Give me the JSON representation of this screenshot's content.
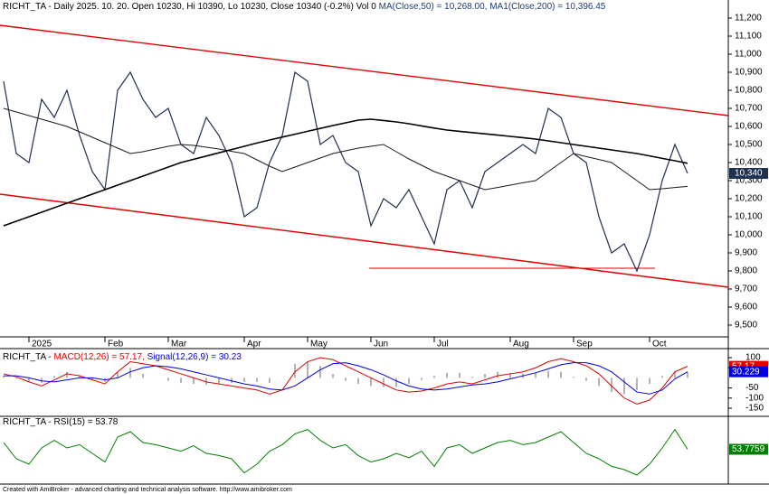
{
  "chart_data": [
    {
      "type": "line",
      "title": [
        "RICHT_TA - Daily 2025. 10. 20. Open 10230, Hi 10390, Lo 10230, Close 10340 (-0.2%) Vol 0",
        "MA(Close,50) = 10,268.00,",
        "MA1(Close,200) = 10,396.45"
      ],
      "title_colors": [
        "#000000",
        "#1c3c78",
        "#1c3c78"
      ],
      "categories": [
        null,
        null,
        "2025",
        null,
        null,
        null,
        null,
        null,
        "Feb",
        null,
        null,
        null,
        null,
        "Mar",
        null,
        null,
        null,
        null,
        null,
        "Apr",
        null,
        null,
        null,
        null,
        "May",
        null,
        null,
        null,
        null,
        "Jun",
        null,
        null,
        null,
        null,
        "Jul",
        null,
        null,
        null,
        null,
        null,
        "Aug",
        null,
        null,
        null,
        null,
        "Sep",
        null,
        null,
        null,
        null,
        null,
        "Oct",
        null,
        null,
        null
      ],
      "series": [
        {
          "color": "#1f3050",
          "width": 1.2,
          "values": [
            10850,
            10450,
            10400,
            10750,
            10650,
            10800,
            10550,
            10350,
            10250,
            10800,
            10900,
            10750,
            10650,
            10700,
            10500,
            10450,
            10650,
            10550,
            10400,
            10100,
            10150,
            10400,
            10550,
            10900,
            10850,
            10500,
            10550,
            10400,
            10350,
            10050,
            10200,
            10150,
            10250,
            10100,
            9950,
            10250,
            10300,
            10150,
            10350,
            10400,
            10450,
            10500,
            10450,
            10700,
            10650,
            10450,
            10400,
            10100,
            9900,
            9950,
            9800,
            10000,
            10300,
            10500,
            10340
          ]
        },
        {
          "color": "#1a1a1a",
          "width": 1,
          "values": [
            10700,
            10680,
            10660,
            10640,
            10620,
            10600,
            10570,
            10540,
            10510,
            10480,
            10450,
            10460,
            10475,
            10490,
            10500,
            10495,
            10485,
            10475,
            10462,
            10450,
            10415,
            10380,
            10350,
            10375,
            10400,
            10425,
            10450,
            10465,
            10480,
            10490,
            10500,
            10460,
            10420,
            10385,
            10350,
            10325,
            10300,
            10275,
            10250,
            10262,
            10275,
            10288,
            10300,
            10350,
            10400,
            10450,
            10433,
            10417,
            10400,
            10350,
            10300,
            10250,
            10255,
            10262,
            10268
          ]
        },
        {
          "color": "#000000",
          "width": 1.6,
          "values": [
            10050,
            10075,
            10100,
            10125,
            10150,
            10175,
            10200,
            10225,
            10250,
            10275,
            10300,
            10325,
            10350,
            10375,
            10400,
            10418,
            10436,
            10454,
            10472,
            10490,
            10508,
            10525,
            10541,
            10557,
            10573,
            10589,
            10605,
            10620,
            10635,
            10640,
            10633,
            10625,
            10615,
            10603,
            10591,
            10580,
            10573,
            10566,
            10559,
            10552,
            10545,
            10538,
            10530,
            10520,
            10510,
            10500,
            10490,
            10480,
            10470,
            10460,
            10450,
            10437,
            10423,
            10410,
            10396
          ]
        }
      ],
      "last_value_label": "10,340",
      "channel": [
        {
          "color": "#e00000",
          "values": [
            11160,
            10660
          ]
        },
        {
          "color": "#e00000",
          "values": [
            10225,
            9710
          ]
        }
      ],
      "support": {
        "color": "#e00000",
        "value": 9815
      },
      "ylim": [
        9440,
        11250
      ],
      "yticks": [
        {
          "value": 11200,
          "label": "11,200"
        },
        {
          "value": 11100,
          "label": "11,100"
        },
        {
          "value": 11000,
          "label": "11,000"
        },
        {
          "value": 10900,
          "label": "10,900"
        },
        {
          "value": 10800,
          "label": "10,800"
        },
        {
          "value": 10700,
          "label": "10,700"
        },
        {
          "value": 10600,
          "label": "10,600"
        },
        {
          "value": 10500,
          "label": "10,500"
        },
        {
          "value": 10400,
          "label": "10,400"
        },
        {
          "value": 10300,
          "label": "10,300"
        },
        {
          "value": 10200,
          "label": "10,200"
        },
        {
          "value": 10100,
          "label": "10,100"
        },
        {
          "value": 10000,
          "label": "10,000"
        },
        {
          "value": 9900,
          "label": "9,900"
        },
        {
          "value": 9800,
          "label": "9,800"
        },
        {
          "value": 9700,
          "label": "9,700"
        },
        {
          "value": 9600,
          "label": "9,600"
        },
        {
          "value": 9500,
          "label": "9,500"
        }
      ]
    },
    {
      "type": "line",
      "title": [
        "RICHT_TA - ",
        "MACD(12,26) = 57.17,",
        "Signal(12,26,9) = 30.23"
      ],
      "title_colors": [
        "#000000",
        "#e00000",
        "#0000e0"
      ],
      "series": [
        {
          "color": "#808080",
          "style": "bar",
          "values": [
            10,
            -5,
            -20,
            -25,
            10,
            30,
            10,
            -10,
            -20,
            30,
            50,
            20,
            0,
            -15,
            -25,
            -30,
            -35,
            -30,
            -25,
            -20,
            -20,
            -25,
            0,
            70,
            80,
            60,
            20,
            -15,
            -30,
            -40,
            -45,
            -45,
            -30,
            -10,
            10,
            25,
            25,
            5,
            20,
            30,
            25,
            20,
            25,
            35,
            30,
            5,
            -15,
            -40,
            -70,
            -80,
            -60,
            -30,
            10,
            35,
            27
          ]
        },
        {
          "color": "#e00000",
          "width": 1,
          "box": true,
          "values": [
            20,
            5,
            -20,
            -40,
            -10,
            20,
            10,
            -10,
            -30,
            30,
            80,
            70,
            60,
            40,
            20,
            0,
            -20,
            -30,
            -40,
            -50,
            -60,
            -80,
            -60,
            30,
            80,
            100,
            90,
            60,
            30,
            0,
            -30,
            -60,
            -70,
            -65,
            -50,
            -30,
            -20,
            -30,
            -10,
            10,
            20,
            30,
            50,
            80,
            95,
            80,
            60,
            20,
            -40,
            -100,
            -130,
            -110,
            -50,
            30,
            57.17
          ]
        },
        {
          "color": "#0000e0",
          "width": 1,
          "box": true,
          "values": [
            10,
            10,
            0,
            -15,
            -20,
            -10,
            0,
            0,
            -10,
            0,
            30,
            50,
            60,
            55,
            45,
            30,
            15,
            0,
            -15,
            -30,
            -40,
            -55,
            -60,
            -40,
            0,
            40,
            70,
            75,
            60,
            40,
            15,
            -15,
            -40,
            -55,
            -60,
            -55,
            -45,
            -35,
            -30,
            -20,
            -5,
            10,
            25,
            45,
            65,
            75,
            75,
            60,
            30,
            -20,
            -70,
            -80,
            -60,
            -5,
            30.229
          ]
        }
      ],
      "ylim": [
        -186,
        136
      ],
      "yticks": [
        100,
        50,
        -50,
        -100,
        -150
      ]
    },
    {
      "type": "line",
      "title": [
        "RICHT_TA - RSI(15) = 53.78"
      ],
      "title_colors": [
        "#000000"
      ],
      "series": [
        {
          "color": "#008000",
          "width": 1,
          "box": true,
          "values": [
            60,
            45,
            40,
            55,
            62,
            55,
            58,
            50,
            42,
            65,
            70,
            60,
            58,
            55,
            52,
            57,
            50,
            48,
            45,
            32,
            40,
            52,
            58,
            68,
            72,
            62,
            55,
            58,
            48,
            42,
            45,
            50,
            46,
            52,
            38,
            55,
            58,
            50,
            55,
            60,
            62,
            58,
            60,
            65,
            70,
            60,
            50,
            45,
            38,
            35,
            30,
            40,
            55,
            72,
            53.7759
          ]
        }
      ],
      "ylim": [
        25,
        80
      ]
    }
  ],
  "footer": "Created with AmiBroker - advanced charting and technical analysis software. http://www.amibroker.com"
}
